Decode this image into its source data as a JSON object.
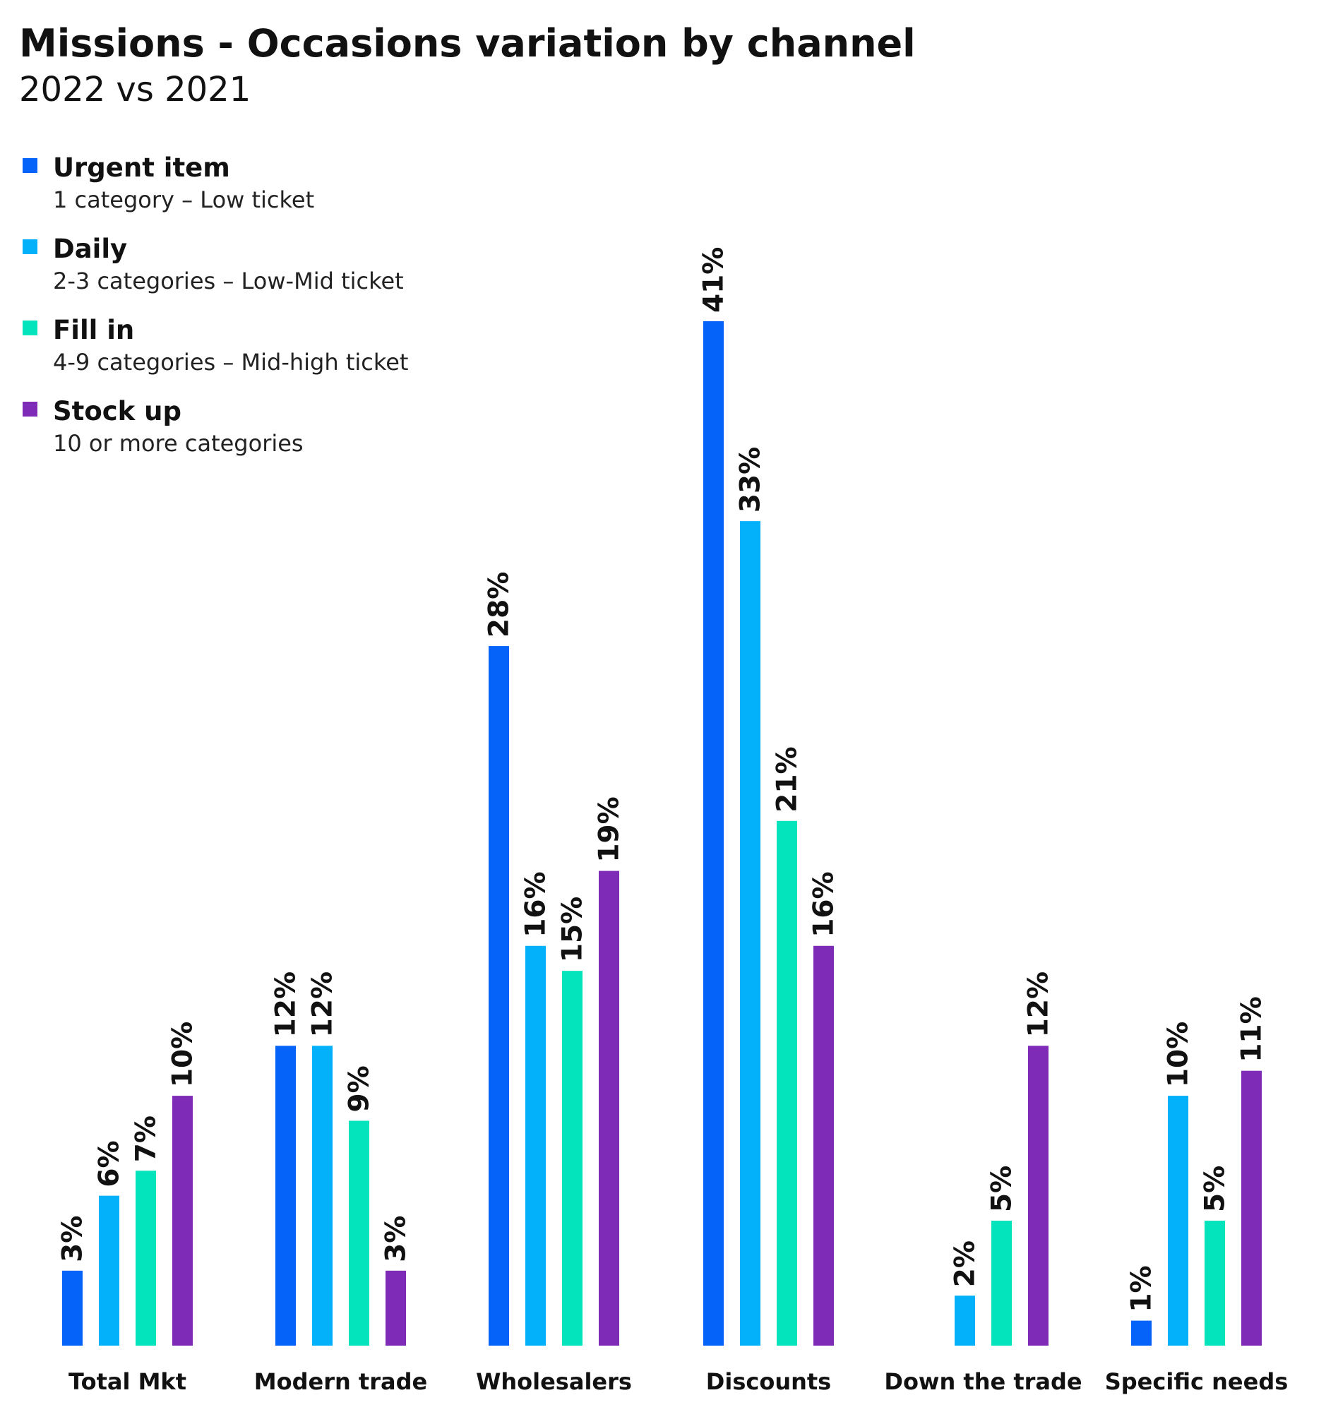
{
  "chart_data": {
    "type": "bar",
    "title": "Missions - Occasions variation by channel",
    "subtitle": "2022 vs 2021",
    "categories": [
      "Total Mkt",
      "Modern trade",
      "Wholesalers",
      "Discounts",
      "Down the trade",
      "Specific needs"
    ],
    "series": [
      {
        "name": "Urgent item",
        "description": "1 category – Low ticket",
        "color": "#0563FA",
        "values": [
          3,
          12,
          28,
          41,
          null,
          1
        ]
      },
      {
        "name": "Daily",
        "description": "2-3 categories – Low-Mid ticket",
        "color": "#03B1FB",
        "values": [
          6,
          12,
          16,
          33,
          2,
          10
        ]
      },
      {
        "name": "Fill in",
        "description": "4-9 categories – Mid-high ticket",
        "color": "#04E4BC",
        "values": [
          7,
          9,
          15,
          21,
          5,
          5
        ]
      },
      {
        "name": "Stock up",
        "description": "10 or more categories",
        "color": "#7E2BB7",
        "values": [
          10,
          3,
          19,
          16,
          12,
          11
        ]
      }
    ],
    "value_suffix": "%",
    "ylim": [
      0,
      41
    ],
    "legend_position": "top-left",
    "grid": false
  }
}
